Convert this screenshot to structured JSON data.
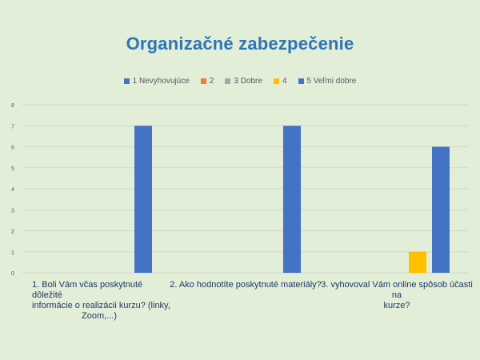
{
  "chart_data": {
    "type": "bar",
    "title": "Organizačné zabezpečenie",
    "categories": [
      "1. Boli Vám včas poskytnuté dôležité informácie o realizácii kurzu? (linky, Zoom,...)",
      "2. Ako hodnotíte poskytnuté materiály?",
      "3. vyhovoval Vám online spôsob účasti na kurze?"
    ],
    "series": [
      {
        "name": "1 Nevyhovujúce",
        "color": "#4472c4",
        "values": [
          0,
          0,
          0
        ]
      },
      {
        "name": "2",
        "color": "#ed7d31",
        "values": [
          0,
          0,
          0
        ]
      },
      {
        "name": "3 Dobre",
        "color": "#a5a5a5",
        "values": [
          0,
          0,
          0
        ]
      },
      {
        "name": "4",
        "color": "#ffc000",
        "values": [
          0,
          0,
          1
        ]
      },
      {
        "name": "5 Veľmi dobre",
        "color": "#4472c4",
        "values": [
          7,
          7,
          6
        ]
      }
    ],
    "y_ticks": [
      "0",
      "1",
      "2",
      "3",
      "4",
      "5",
      "6",
      "7",
      "8"
    ],
    "ylim": [
      0,
      8
    ],
    "grid": true,
    "legend_position": "top"
  },
  "labels": {
    "cat1_line1": "1. Boli Vám včas poskytnuté",
    "cat1_line2": "dôležité",
    "cat1_line3": "informácie o realizácii kurzu? (linky,",
    "cat1_line4": "Zoom,...)",
    "cat2": "2. Ako hodnotíte poskytnuté materiály?",
    "cat3_line1": "3. vyhovoval Vám online spôsob účasti na",
    "cat3_line2": "kurze?"
  }
}
